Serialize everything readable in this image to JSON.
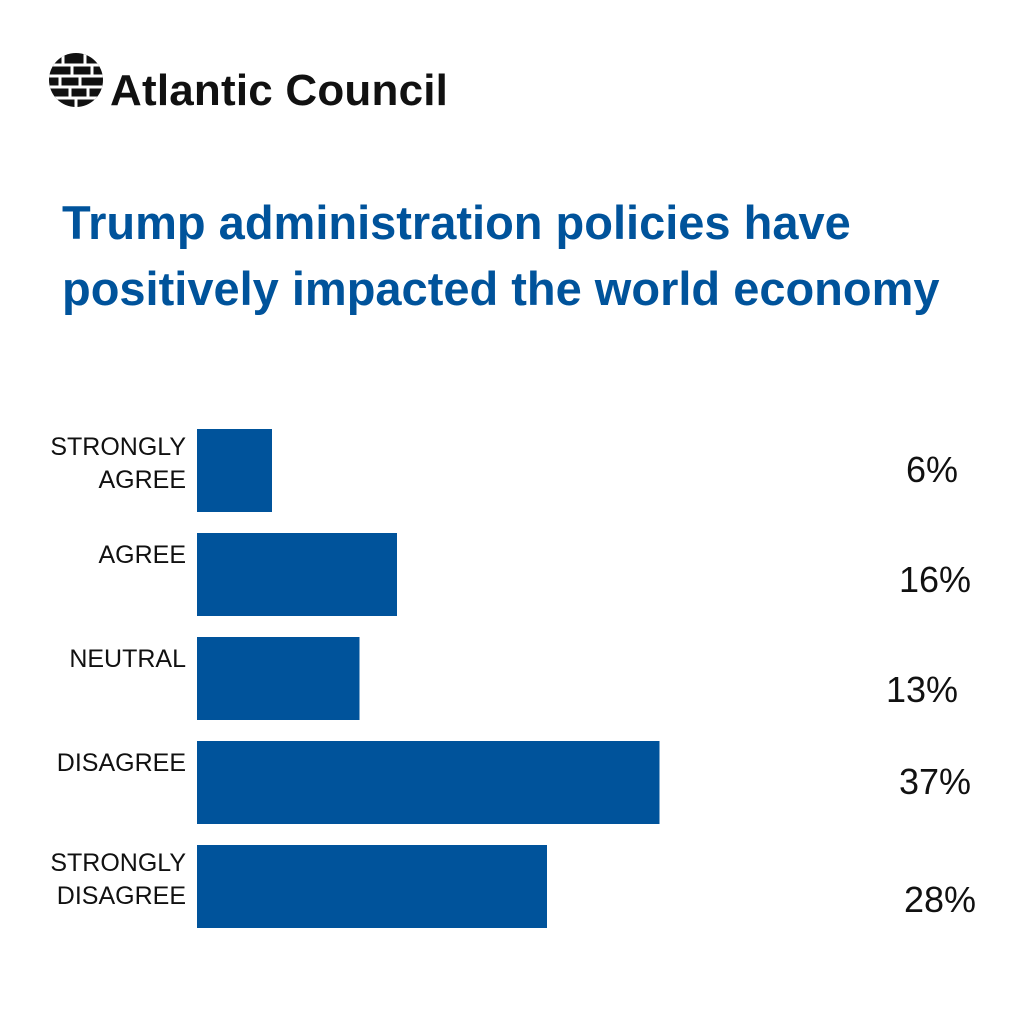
{
  "brand": {
    "name": "Atlantic Council",
    "logo_icon": "globe-grid-icon"
  },
  "chart_data": {
    "type": "bar",
    "orientation": "horizontal",
    "title_lines": [
      "Trump administration policies have",
      "positively impacted the world economy"
    ],
    "categories": [
      [
        "STRONGLY",
        "AGREE"
      ],
      [
        "AGREE"
      ],
      [
        "NEUTRAL"
      ],
      [
        "DISAGREE"
      ],
      [
        "STRONGLY",
        "DISAGREE"
      ]
    ],
    "values": [
      6,
      16,
      13,
      37,
      28
    ],
    "value_labels": [
      "6%",
      "16%",
      "13%",
      "37%",
      "28%"
    ],
    "unit": "%",
    "xlim": [
      0,
      40
    ],
    "grid": false,
    "legend": "none",
    "bar_color": "#00539b"
  }
}
